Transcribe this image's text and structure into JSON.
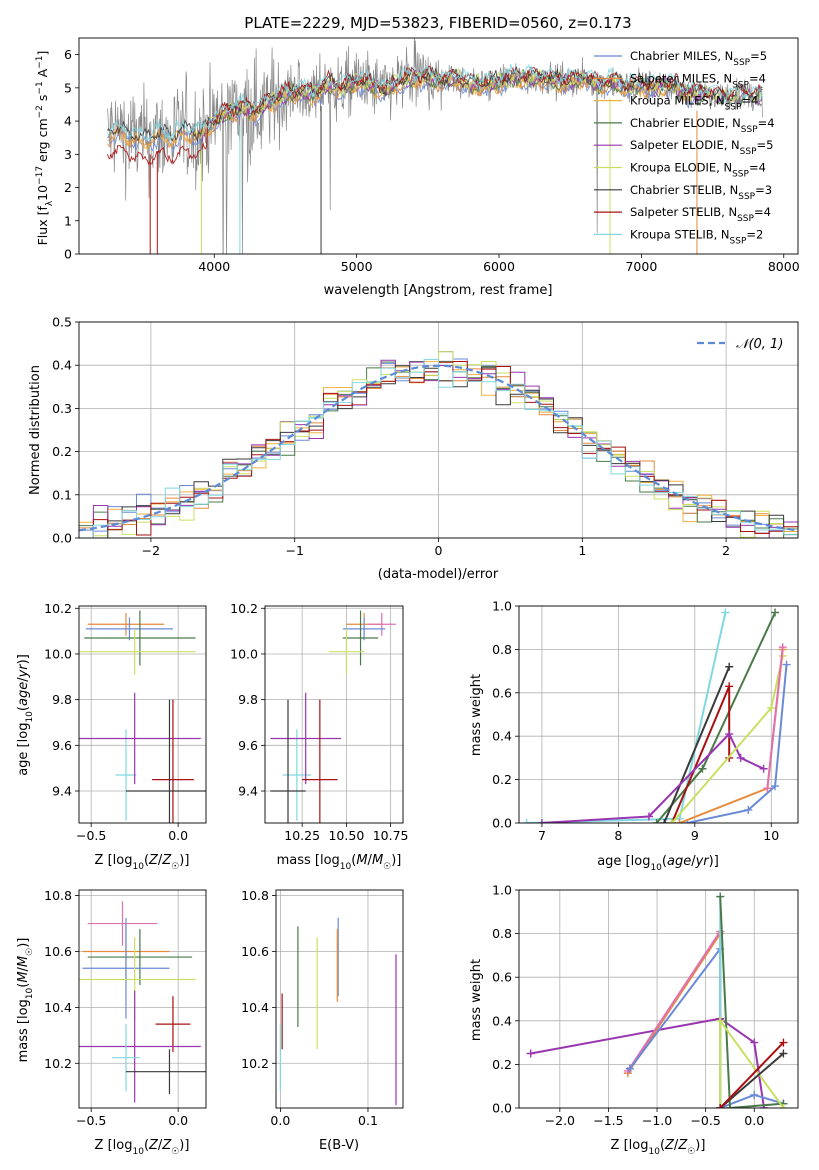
{
  "title": "PLATE=2229, MJD=53823, FIBERID=0560, z=0.173",
  "colors": {
    "cM": "#6a8ad8",
    "sM": "#e68a3c",
    "kM": "#f0b040",
    "cE": "#4a7a4a",
    "sE": "#9a35b0",
    "kE": "#c8e060",
    "cS": "#3a3a3a",
    "sS": "#aa1010",
    "kS": "#80d8e0",
    "data": "#888888",
    "extra_pink": "#e070b0"
  },
  "chart_data": [
    {
      "id": "spectrum",
      "type": "line",
      "xlabel": "wavelength [Angstrom, rest frame]",
      "ylabel": "Flux [f_λ10^-17 erg cm^-2 s^-1 A^-1]",
      "xlim": [
        3050,
        8100
      ],
      "ylim": [
        0,
        6.5
      ],
      "xticks": [
        4000,
        5000,
        6000,
        7000,
        8000
      ],
      "yticks": [
        0,
        1,
        2,
        3,
        4,
        5,
        6
      ],
      "legend_position": "top-right",
      "legend": [
        {
          "key": "cM",
          "label": "Chabrier MILES, N_SSP=5"
        },
        {
          "key": "sM",
          "label": "Salpeter MILES, N_SSP=4"
        },
        {
          "key": "kM",
          "label": "Kroupa MILES, N_SSP=4"
        },
        {
          "key": "cE",
          "label": "Chabrier ELODIE, N_SSP=4"
        },
        {
          "key": "sE",
          "label": "Salpeter ELODIE, N_SSP=5"
        },
        {
          "key": "kE",
          "label": "Kroupa ELODIE, N_SSP=4"
        },
        {
          "key": "cS",
          "label": "Chabrier STELIB, N_SSP=3"
        },
        {
          "key": "sS",
          "label": "Salpeter STELIB, N_SSP=4"
        },
        {
          "key": "kS",
          "label": "Kroupa STELIB, N_SSP=2"
        }
      ],
      "continuum": [
        [
          3250,
          3.6
        ],
        [
          3300,
          3.7
        ],
        [
          3400,
          3.6
        ],
        [
          3500,
          3.4
        ],
        [
          3600,
          3.6
        ],
        [
          3700,
          3.5
        ],
        [
          3800,
          3.7
        ],
        [
          3900,
          3.6
        ],
        [
          4000,
          4.0
        ],
        [
          4100,
          4.3
        ],
        [
          4200,
          4.4
        ],
        [
          4300,
          4.3
        ],
        [
          4400,
          4.6
        ],
        [
          4500,
          4.8
        ],
        [
          4600,
          4.9
        ],
        [
          4700,
          4.8
        ],
        [
          4800,
          5.1
        ],
        [
          4900,
          5.0
        ],
        [
          5000,
          5.2
        ],
        [
          5100,
          5.1
        ],
        [
          5200,
          4.9
        ],
        [
          5300,
          5.2
        ],
        [
          5400,
          5.3
        ],
        [
          5500,
          5.3
        ],
        [
          5600,
          5.2
        ],
        [
          5700,
          5.3
        ],
        [
          5800,
          5.1
        ],
        [
          5900,
          5.1
        ],
        [
          6000,
          5.2
        ],
        [
          6100,
          5.3
        ],
        [
          6200,
          5.3
        ],
        [
          6300,
          5.3
        ],
        [
          6400,
          5.2
        ],
        [
          6500,
          5.2
        ],
        [
          6600,
          5.3
        ],
        [
          6700,
          5.1
        ],
        [
          6800,
          5.2
        ],
        [
          6900,
          5.0
        ],
        [
          7000,
          5.1
        ],
        [
          7100,
          5.0
        ],
        [
          7200,
          5.1
        ],
        [
          7300,
          4.9
        ],
        [
          7400,
          4.8
        ],
        [
          7500,
          4.8
        ],
        [
          7600,
          4.7
        ],
        [
          7700,
          4.8
        ],
        [
          7850,
          4.7
        ]
      ]
    },
    {
      "id": "residuals",
      "type": "bar",
      "xlabel": "(data-model)/error",
      "ylabel": "Normed distribution",
      "xlim": [
        -2.5,
        2.5
      ],
      "ylim": [
        0,
        0.5
      ],
      "xticks": [
        -2,
        -1,
        0,
        1,
        2
      ],
      "yticks": [
        0.0,
        0.1,
        0.2,
        0.3,
        0.4,
        0.5
      ],
      "grid": true,
      "legend_position": "top-right",
      "legend": [
        {
          "label": "𝒩(0, 1)"
        }
      ],
      "bin_width": 0.1
    },
    {
      "id": "ageZ",
      "type": "scatter",
      "xlabel": "Z [log10(Z/Z☉)]",
      "ylabel": "age  [log10(age/yr)]",
      "xlim": [
        -0.57,
        0.16
      ],
      "ylim": [
        9.26,
        10.21
      ],
      "xticks": [
        -0.5,
        0.0
      ],
      "yticks": [
        9.4,
        9.6,
        9.8,
        10.0,
        10.2
      ],
      "grid": true,
      "points": [
        {
          "key": "sM",
          "x": -0.3,
          "y": 10.13,
          "xe": 0.22,
          "ye": 0.05
        },
        {
          "key": "cM",
          "x": -0.28,
          "y": 10.11,
          "xe": 0.25,
          "ye": 0.05
        },
        {
          "key": "cE",
          "x": -0.22,
          "y": 10.07,
          "xe": 0.32,
          "ye": 0.12
        },
        {
          "key": "kE",
          "x": -0.25,
          "y": 10.01,
          "xe": 0.35,
          "ye": 0.1
        },
        {
          "key": "kS",
          "x": -0.3,
          "y": 9.47,
          "xe": 0.06,
          "ye": 0.2
        },
        {
          "key": "sE",
          "x": -0.25,
          "y": 9.63,
          "xe": 0.38,
          "ye": 0.2
        },
        {
          "key": "sS",
          "x": -0.03,
          "y": 9.45,
          "xe": 0.12,
          "ye": 0.35
        },
        {
          "key": "cS",
          "x": -0.05,
          "y": 9.4,
          "xe": 0.25,
          "ye": 0.4
        }
      ]
    },
    {
      "id": "ageMass",
      "type": "scatter",
      "xlabel": "mass [log10(M/M☉)]",
      "ylabel": "",
      "xlim": [
        10.04,
        10.82
      ],
      "ylim": [
        9.26,
        10.21
      ],
      "xticks": [
        10.25,
        10.5,
        10.75
      ],
      "xticklabels": [
        "10.25",
        "10.50",
        "10.75"
      ],
      "yticks": [
        9.4,
        9.6,
        9.8,
        10.0,
        10.2
      ],
      "grid": true,
      "points": [
        {
          "key": "sM",
          "x": 10.6,
          "y": 10.13,
          "xe": 0.1,
          "ye": 0.05
        },
        {
          "key": "extra_pink",
          "x": 10.7,
          "y": 10.13,
          "xe": 0.08,
          "ye": 0.05
        },
        {
          "key": "cM",
          "x": 10.6,
          "y": 10.11,
          "xe": 0.12,
          "ye": 0.05
        },
        {
          "key": "cE",
          "x": 10.58,
          "y": 10.07,
          "xe": 0.1,
          "ye": 0.12
        },
        {
          "key": "kE",
          "x": 10.5,
          "y": 10.01,
          "xe": 0.1,
          "ye": 0.1
        },
        {
          "key": "kS",
          "x": 10.22,
          "y": 9.47,
          "xe": 0.08,
          "ye": 0.2
        },
        {
          "key": "sE",
          "x": 10.27,
          "y": 9.63,
          "xe": 0.2,
          "ye": 0.2
        },
        {
          "key": "sS",
          "x": 10.35,
          "y": 9.45,
          "xe": 0.1,
          "ye": 0.35
        },
        {
          "key": "cS",
          "x": 10.17,
          "y": 9.4,
          "xe": 0.1,
          "ye": 0.4
        }
      ]
    },
    {
      "id": "weightAge",
      "type": "line",
      "xlabel": "age  [log10(age/yr)]",
      "ylabel": "mass weight",
      "xlim": [
        6.7,
        10.35
      ],
      "ylim": [
        0,
        1.0
      ],
      "xticks": [
        7,
        8,
        9,
        10
      ],
      "yticks": [
        0.0,
        0.2,
        0.4,
        0.6,
        0.8,
        1.0
      ],
      "grid": true,
      "series": [
        {
          "key": "kS",
          "x": [
            6.8,
            8.8,
            9.4
          ],
          "y": [
            0.0,
            0.02,
            0.97
          ]
        },
        {
          "key": "cE",
          "x": [
            8.5,
            9.1,
            10.05
          ],
          "y": [
            0.0,
            0.25,
            0.97
          ]
        },
        {
          "key": "cS",
          "x": [
            8.6,
            9.45
          ],
          "y": [
            0.0,
            0.72
          ]
        },
        {
          "key": "sS",
          "x": [
            8.7,
            9.45,
            9.45
          ],
          "y": [
            0.0,
            0.63,
            0.3
          ]
        },
        {
          "key": "sE",
          "x": [
            7.0,
            8.4,
            9.45,
            9.6,
            9.9
          ],
          "y": [
            0.0,
            0.03,
            0.41,
            0.3,
            0.25
          ]
        },
        {
          "key": "kE",
          "x": [
            8.7,
            10.0,
            10.15
          ],
          "y": [
            0.0,
            0.53,
            0.77
          ]
        },
        {
          "key": "cM",
          "x": [
            8.9,
            9.7,
            10.05,
            10.2
          ],
          "y": [
            0.0,
            0.06,
            0.17,
            0.73
          ]
        },
        {
          "key": "sM",
          "x": [
            8.8,
            9.95,
            10.15
          ],
          "y": [
            0.0,
            0.16,
            0.8
          ]
        },
        {
          "key": "extra_pink",
          "x": [
            9.95,
            10.15
          ],
          "y": [
            0.16,
            0.81
          ]
        }
      ]
    },
    {
      "id": "massZ",
      "type": "scatter",
      "xlabel": "Z [log10(Z/Z☉)]",
      "ylabel": "mass [log10(M/M☉)]",
      "xlim": [
        -0.57,
        0.16
      ],
      "ylim": [
        10.04,
        10.82
      ],
      "xticks": [
        -0.5,
        0.0
      ],
      "yticks": [
        10.2,
        10.4,
        10.6,
        10.8
      ],
      "grid": true,
      "points": [
        {
          "key": "extra_pink",
          "x": -0.32,
          "y": 10.7,
          "xe": 0.2,
          "ye": 0.08
        },
        {
          "key": "sM",
          "x": -0.3,
          "y": 10.6,
          "xe": 0.25,
          "ye": 0.1
        },
        {
          "key": "cE",
          "x": -0.22,
          "y": 10.58,
          "xe": 0.3,
          "ye": 0.1
        },
        {
          "key": "cM",
          "x": -0.3,
          "y": 10.54,
          "xe": 0.25,
          "ye": 0.18
        },
        {
          "key": "kE",
          "x": -0.25,
          "y": 10.5,
          "xe": 0.35,
          "ye": 0.15
        },
        {
          "key": "sS",
          "x": -0.03,
          "y": 10.34,
          "xe": 0.1,
          "ye": 0.1
        },
        {
          "key": "sE",
          "x": -0.25,
          "y": 10.26,
          "xe": 0.38,
          "ye": 0.2
        },
        {
          "key": "kS",
          "x": -0.3,
          "y": 10.22,
          "xe": 0.08,
          "ye": 0.12
        },
        {
          "key": "cS",
          "x": -0.05,
          "y": 10.17,
          "xe": 0.25,
          "ye": 0.08
        }
      ]
    },
    {
      "id": "massEBV",
      "type": "scatter",
      "xlabel": "E(B-V)",
      "ylabel": "",
      "xlim": [
        -0.005,
        0.14
      ],
      "ylim": [
        10.04,
        10.82
      ],
      "xticks": [
        0.0,
        0.1
      ],
      "yticks": [
        10.2,
        10.4,
        10.6,
        10.8
      ],
      "grid": true,
      "points": [
        {
          "key": "cM",
          "x": 0.066,
          "y": 10.58,
          "xe": 0,
          "ye": 0.14
        },
        {
          "key": "sM",
          "x": 0.065,
          "y": 10.55,
          "xe": 0,
          "ye": 0.13
        },
        {
          "key": "kE",
          "x": 0.042,
          "y": 10.45,
          "xe": 0,
          "ye": 0.2
        },
        {
          "key": "cE",
          "x": 0.02,
          "y": 10.51,
          "xe": 0,
          "ye": 0.18
        },
        {
          "key": "sE",
          "x": 0.132,
          "y": 10.32,
          "xe": 0,
          "ye": 0.27
        },
        {
          "key": "sS",
          "x": 0.002,
          "y": 10.35,
          "xe": 0,
          "ye": 0.1
        },
        {
          "key": "kS",
          "x": 0.0,
          "y": 10.22,
          "xe": 0,
          "ye": 0.12
        }
      ]
    },
    {
      "id": "weightZ",
      "type": "line",
      "xlabel": "Z [log10(Z/Z☉)]",
      "ylabel": "mass weight",
      "xlim": [
        -2.42,
        0.45
      ],
      "ylim": [
        0,
        1.0
      ],
      "xticks": [
        -2.0,
        -1.5,
        -1.0,
        -0.5,
        0.0
      ],
      "xticklabels": [
        "−2.0",
        "−1.5",
        "−1.0",
        "−0.5",
        "0.0"
      ],
      "yticks": [
        0.0,
        0.2,
        0.4,
        0.6,
        0.8,
        1.0
      ],
      "grid": true,
      "series": [
        {
          "key": "sE",
          "x": [
            -2.3,
            -0.35,
            0.0,
            0.1
          ],
          "y": [
            0.25,
            0.41,
            0.3,
            0.0
          ]
        },
        {
          "key": "sM",
          "x": [
            -1.3,
            -0.35,
            -0.35
          ],
          "y": [
            0.16,
            0.8,
            0.0
          ]
        },
        {
          "key": "extra_pink",
          "x": [
            -1.3,
            -0.35
          ],
          "y": [
            0.17,
            0.81
          ]
        },
        {
          "key": "cM",
          "x": [
            -1.28,
            -0.35,
            -0.35,
            0.0,
            0.3
          ],
          "y": [
            0.18,
            0.73,
            0.0,
            0.06,
            0.02
          ]
        },
        {
          "key": "kS",
          "x": [
            -0.35,
            -0.35
          ],
          "y": [
            0.0,
            0.97
          ]
        },
        {
          "key": "cE",
          "x": [
            -0.35,
            -0.25,
            0.3
          ],
          "y": [
            0.97,
            0.0,
            0.02
          ]
        },
        {
          "key": "kE",
          "x": [
            -0.35,
            -0.35,
            0.3
          ],
          "y": [
            0.0,
            0.4,
            0.0
          ]
        },
        {
          "key": "cS",
          "x": [
            -0.35,
            0.3
          ],
          "y": [
            0.0,
            0.25
          ]
        },
        {
          "key": "sS",
          "x": [
            -0.35,
            0.3
          ],
          "y": [
            0.0,
            0.3
          ]
        }
      ]
    }
  ]
}
